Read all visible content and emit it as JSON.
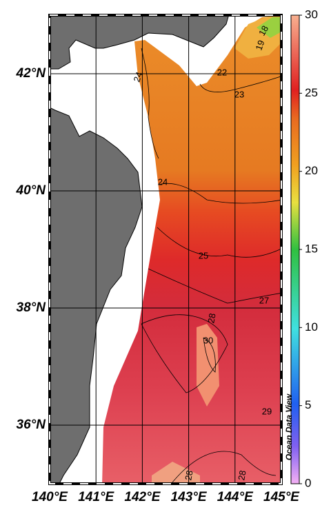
{
  "map": {
    "xlim": [
      140,
      145
    ],
    "ylim": [
      35,
      43
    ],
    "xticks": [
      {
        "value": 140,
        "label": "140°E"
      },
      {
        "value": 141,
        "label": "141°E"
      },
      {
        "value": 142,
        "label": "142°E"
      },
      {
        "value": 143,
        "label": "143°E"
      },
      {
        "value": 144,
        "label": "144°E"
      },
      {
        "value": 145,
        "label": "145°E"
      }
    ],
    "yticks": [
      {
        "value": 36,
        "label": "36°N"
      },
      {
        "value": 38,
        "label": "38°N"
      },
      {
        "value": 40,
        "label": "40°N"
      },
      {
        "value": 42,
        "label": "42°N"
      }
    ],
    "colorbar": {
      "lim": [
        0,
        30
      ],
      "ticks": [
        0,
        5,
        10,
        15,
        20,
        25,
        30
      ]
    },
    "contour_labels": [
      "24",
      "22",
      "18",
      "19",
      "23",
      "24",
      "25",
      "27",
      "28",
      "30",
      "29",
      "28",
      "28"
    ],
    "watermark": "Ocean Data View"
  }
}
